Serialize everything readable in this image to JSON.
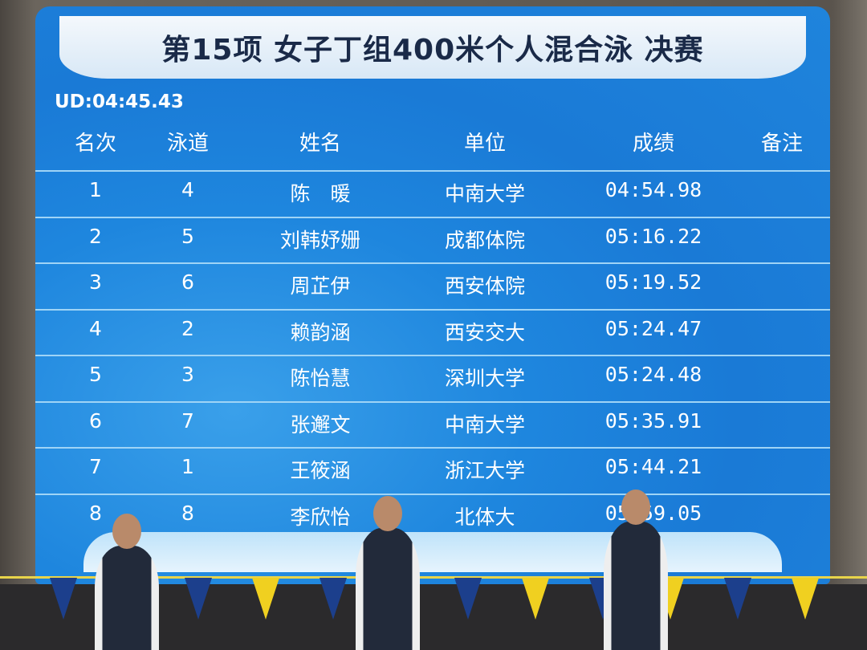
{
  "title": "第15项 女子丁组400米个人混合泳 决赛",
  "ud": "UD:04:45.43",
  "headers": {
    "rank": "名次",
    "lane": "泳道",
    "name": "姓名",
    "unit": "单位",
    "result": "成绩",
    "note": "备注"
  },
  "rows": [
    {
      "rank": "1",
      "lane": "4",
      "name": "陈　暖",
      "unit": "中南大学",
      "result": "04:54.98"
    },
    {
      "rank": "2",
      "lane": "5",
      "name": "刘韩妤姗",
      "unit": "成都体院",
      "result": "05:16.22"
    },
    {
      "rank": "3",
      "lane": "6",
      "name": "周芷伊",
      "unit": "西安体院",
      "result": "05:19.52"
    },
    {
      "rank": "4",
      "lane": "2",
      "name": "赖韵涵",
      "unit": "西安交大",
      "result": "05:24.47"
    },
    {
      "rank": "5",
      "lane": "3",
      "name": "陈怡慧",
      "unit": "深圳大学",
      "result": "05:24.48"
    },
    {
      "rank": "6",
      "lane": "7",
      "name": "张邂文",
      "unit": "中南大学",
      "result": "05:35.91"
    },
    {
      "rank": "7",
      "lane": "1",
      "name": "王筱涵",
      "unit": "浙江大学",
      "result": "05:44.21"
    },
    {
      "rank": "8",
      "lane": "8",
      "name": "李欣怡",
      "unit": "北体大",
      "result": "05:59.05"
    }
  ],
  "colors": {
    "board": "#1e86de",
    "banner": "#eef5fb",
    "flag_blue": "#1c3f8c",
    "flag_yellow": "#f0d020"
  }
}
